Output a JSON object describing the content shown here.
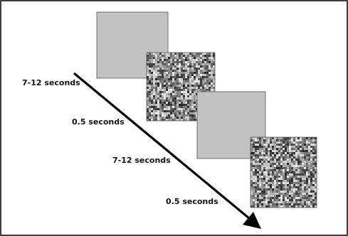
{
  "diagram": {
    "steps": [
      {
        "kind": "gray-frame",
        "duration": "7-12 seconds"
      },
      {
        "kind": "noise-mask",
        "duration": "0.5 seconds"
      },
      {
        "kind": "gray-frame",
        "duration": "7-12 seconds"
      },
      {
        "kind": "noise-mask",
        "duration": "0.5 seconds"
      }
    ],
    "colors": {
      "gray_frame": "#c2c2c2",
      "border": "#000000",
      "arrow": "#000000",
      "text": "#111111"
    },
    "icons": {
      "arrow": "diagonal-arrow-icon"
    }
  }
}
